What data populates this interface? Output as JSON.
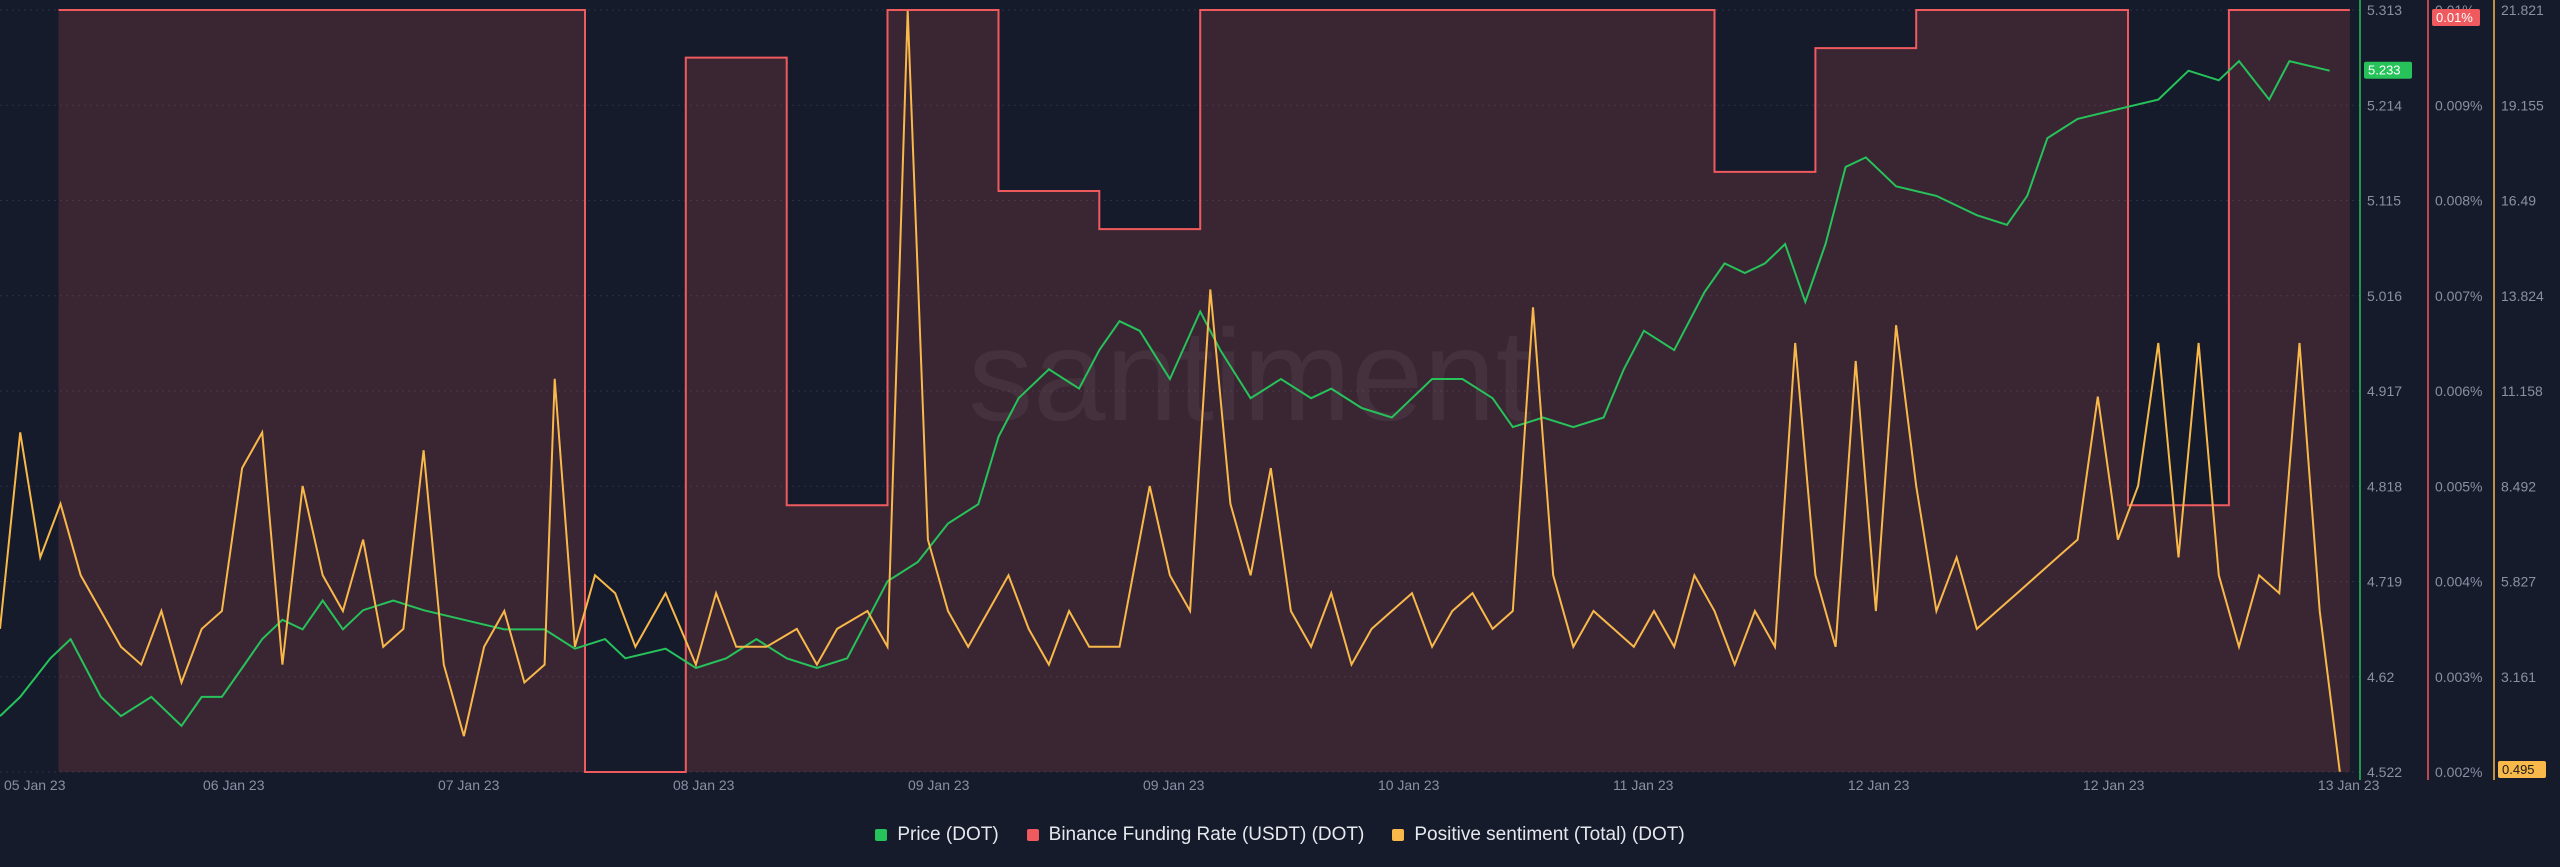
{
  "chart_data": {
    "type": "line",
    "watermark": "santiment",
    "x_ticks": [
      "05 Jan 23",
      "06 Jan 23",
      "07 Jan 23",
      "08 Jan 23",
      "09 Jan 23",
      "09 Jan 23",
      "10 Jan 23",
      "11 Jan 23",
      "12 Jan 23",
      "12 Jan 23",
      "13 Jan 23"
    ],
    "axes": {
      "price": {
        "ticks": [
          "5.313",
          "5.214",
          "5.115",
          "5.016",
          "4.917",
          "4.818",
          "4.719",
          "4.62",
          "4.522"
        ],
        "ylim": [
          4.522,
          5.313
        ],
        "current_label": "5.233",
        "color": "#26c25a"
      },
      "funding": {
        "ticks": [
          "0.01%",
          "0.009%",
          "0.008%",
          "0.007%",
          "0.006%",
          "0.005%",
          "0.004%",
          "0.003%",
          "0.002%"
        ],
        "ylim": [
          0.002,
          0.01
        ],
        "current_label": "0.01%",
        "color": "#ef5a5f"
      },
      "sentiment": {
        "ticks": [
          "21.821",
          "19.155",
          "16.49",
          "13.824",
          "11.158",
          "8.492",
          "5.827",
          "3.161",
          "0.495"
        ],
        "ylim": [
          0.495,
          21.821
        ],
        "current_label": "0.495",
        "color": "#f8b84a"
      }
    },
    "series": [
      {
        "name": "Price (DOT)",
        "color": "#26c25a",
        "axis": "price",
        "points": [
          [
            0,
            4.58
          ],
          [
            0.1,
            4.6
          ],
          [
            0.25,
            4.64
          ],
          [
            0.35,
            4.66
          ],
          [
            0.5,
            4.6
          ],
          [
            0.6,
            4.58
          ],
          [
            0.75,
            4.6
          ],
          [
            0.9,
            4.57
          ],
          [
            1.0,
            4.6
          ],
          [
            1.1,
            4.6
          ],
          [
            1.2,
            4.63
          ],
          [
            1.3,
            4.66
          ],
          [
            1.4,
            4.68
          ],
          [
            1.5,
            4.67
          ],
          [
            1.6,
            4.7
          ],
          [
            1.7,
            4.67
          ],
          [
            1.8,
            4.69
          ],
          [
            1.95,
            4.7
          ],
          [
            2.1,
            4.69
          ],
          [
            2.3,
            4.68
          ],
          [
            2.5,
            4.67
          ],
          [
            2.7,
            4.67
          ],
          [
            2.85,
            4.65
          ],
          [
            3.0,
            4.66
          ],
          [
            3.1,
            4.64
          ],
          [
            3.3,
            4.65
          ],
          [
            3.45,
            4.63
          ],
          [
            3.6,
            4.64
          ],
          [
            3.75,
            4.66
          ],
          [
            3.9,
            4.64
          ],
          [
            4.05,
            4.63
          ],
          [
            4.2,
            4.64
          ],
          [
            4.3,
            4.68
          ],
          [
            4.4,
            4.72
          ],
          [
            4.55,
            4.74
          ],
          [
            4.7,
            4.78
          ],
          [
            4.85,
            4.8
          ],
          [
            4.95,
            4.87
          ],
          [
            5.05,
            4.91
          ],
          [
            5.2,
            4.94
          ],
          [
            5.35,
            4.92
          ],
          [
            5.45,
            4.96
          ],
          [
            5.55,
            4.99
          ],
          [
            5.65,
            4.98
          ],
          [
            5.8,
            4.93
          ],
          [
            5.95,
            5.0
          ],
          [
            6.05,
            4.96
          ],
          [
            6.2,
            4.91
          ],
          [
            6.35,
            4.93
          ],
          [
            6.5,
            4.91
          ],
          [
            6.6,
            4.92
          ],
          [
            6.75,
            4.9
          ],
          [
            6.9,
            4.89
          ],
          [
            7.1,
            4.93
          ],
          [
            7.25,
            4.93
          ],
          [
            7.4,
            4.91
          ],
          [
            7.5,
            4.88
          ],
          [
            7.65,
            4.89
          ],
          [
            7.8,
            4.88
          ],
          [
            7.95,
            4.89
          ],
          [
            8.05,
            4.94
          ],
          [
            8.15,
            4.98
          ],
          [
            8.3,
            4.96
          ],
          [
            8.45,
            5.02
          ],
          [
            8.55,
            5.05
          ],
          [
            8.65,
            5.04
          ],
          [
            8.75,
            5.05
          ],
          [
            8.85,
            5.07
          ],
          [
            8.95,
            5.01
          ],
          [
            9.0,
            5.04
          ],
          [
            9.05,
            5.07
          ],
          [
            9.15,
            5.15
          ],
          [
            9.25,
            5.16
          ],
          [
            9.4,
            5.13
          ],
          [
            9.6,
            5.12
          ],
          [
            9.8,
            5.1
          ],
          [
            9.95,
            5.09
          ],
          [
            10.05,
            5.12
          ],
          [
            10.15,
            5.18
          ],
          [
            10.3,
            5.2
          ],
          [
            10.5,
            5.21
          ],
          [
            10.7,
            5.22
          ],
          [
            10.85,
            5.25
          ],
          [
            11.0,
            5.24
          ],
          [
            11.1,
            5.26
          ],
          [
            11.25,
            5.22
          ],
          [
            11.35,
            5.26
          ],
          [
            11.55,
            5.25
          ]
        ]
      },
      {
        "name": "Binance Funding Rate (USDT) (DOT)",
        "color": "#ef5a5f",
        "axis": "funding",
        "points": [
          [
            0.29,
            0.01
          ],
          [
            2.9,
            0.01
          ],
          [
            2.9,
            0.002
          ],
          [
            3.4,
            0.002
          ],
          [
            3.4,
            0.0095
          ],
          [
            3.9,
            0.0095
          ],
          [
            3.9,
            0.0048
          ],
          [
            4.4,
            0.0048
          ],
          [
            4.4,
            0.01
          ],
          [
            4.95,
            0.01
          ],
          [
            4.95,
            0.0081
          ],
          [
            5.45,
            0.0081
          ],
          [
            5.45,
            0.0077
          ],
          [
            5.95,
            0.0077
          ],
          [
            5.95,
            0.01
          ],
          [
            8.5,
            0.01
          ],
          [
            8.5,
            0.0083
          ],
          [
            9.0,
            0.0083
          ],
          [
            9.0,
            0.0096
          ],
          [
            9.5,
            0.0096
          ],
          [
            9.5,
            0.01
          ],
          [
            10.55,
            0.01
          ],
          [
            10.55,
            0.0048
          ],
          [
            11.05,
            0.0048
          ],
          [
            11.05,
            0.01
          ],
          [
            11.65,
            0.01
          ]
        ]
      },
      {
        "name": "Positive sentiment (Total) (DOT)",
        "color": "#f8b84a",
        "axis": "sentiment",
        "points": [
          [
            0,
            4.5
          ],
          [
            0.1,
            10
          ],
          [
            0.2,
            6.5
          ],
          [
            0.3,
            8
          ],
          [
            0.4,
            6
          ],
          [
            0.5,
            5
          ],
          [
            0.6,
            4
          ],
          [
            0.7,
            3.5
          ],
          [
            0.8,
            5
          ],
          [
            0.9,
            3
          ],
          [
            1.0,
            4.5
          ],
          [
            1.1,
            5
          ],
          [
            1.2,
            9
          ],
          [
            1.3,
            10
          ],
          [
            1.4,
            3.5
          ],
          [
            1.5,
            8.5
          ],
          [
            1.6,
            6
          ],
          [
            1.7,
            5
          ],
          [
            1.8,
            7
          ],
          [
            1.9,
            4
          ],
          [
            2.0,
            4.5
          ],
          [
            2.1,
            9.5
          ],
          [
            2.2,
            3.5
          ],
          [
            2.3,
            1.5
          ],
          [
            2.4,
            4
          ],
          [
            2.5,
            5
          ],
          [
            2.6,
            3
          ],
          [
            2.7,
            3.5
          ],
          [
            2.75,
            11.5
          ],
          [
            2.85,
            4
          ],
          [
            2.95,
            6
          ],
          [
            3.05,
            5.5
          ],
          [
            3.15,
            4
          ],
          [
            3.3,
            5.5
          ],
          [
            3.45,
            3.5
          ],
          [
            3.55,
            5.5
          ],
          [
            3.65,
            4
          ],
          [
            3.8,
            4
          ],
          [
            3.95,
            4.5
          ],
          [
            4.05,
            3.5
          ],
          [
            4.15,
            4.5
          ],
          [
            4.3,
            5
          ],
          [
            4.4,
            4
          ],
          [
            4.5,
            21.8
          ],
          [
            4.6,
            7
          ],
          [
            4.7,
            5
          ],
          [
            4.8,
            4
          ],
          [
            4.9,
            5
          ],
          [
            5.0,
            6
          ],
          [
            5.1,
            4.5
          ],
          [
            5.2,
            3.5
          ],
          [
            5.3,
            5
          ],
          [
            5.4,
            4
          ],
          [
            5.55,
            4
          ],
          [
            5.7,
            8.5
          ],
          [
            5.8,
            6
          ],
          [
            5.9,
            5
          ],
          [
            6.0,
            14
          ],
          [
            6.1,
            8
          ],
          [
            6.2,
            6
          ],
          [
            6.3,
            9
          ],
          [
            6.4,
            5
          ],
          [
            6.5,
            4
          ],
          [
            6.6,
            5.5
          ],
          [
            6.7,
            3.5
          ],
          [
            6.8,
            4.5
          ],
          [
            6.9,
            5
          ],
          [
            7.0,
            5.5
          ],
          [
            7.1,
            4
          ],
          [
            7.2,
            5
          ],
          [
            7.3,
            5.5
          ],
          [
            7.4,
            4.5
          ],
          [
            7.5,
            5
          ],
          [
            7.6,
            13.5
          ],
          [
            7.7,
            6
          ],
          [
            7.8,
            4
          ],
          [
            7.9,
            5
          ],
          [
            8.0,
            4.5
          ],
          [
            8.1,
            4
          ],
          [
            8.2,
            5
          ],
          [
            8.3,
            4
          ],
          [
            8.4,
            6
          ],
          [
            8.5,
            5
          ],
          [
            8.6,
            3.5
          ],
          [
            8.7,
            5
          ],
          [
            8.8,
            4
          ],
          [
            8.9,
            12.5
          ],
          [
            9.0,
            6
          ],
          [
            9.1,
            4
          ],
          [
            9.2,
            12
          ],
          [
            9.3,
            5
          ],
          [
            9.4,
            13
          ],
          [
            9.5,
            8.5
          ],
          [
            9.6,
            5
          ],
          [
            9.7,
            6.5
          ],
          [
            9.8,
            4.5
          ],
          [
            9.9,
            5
          ],
          [
            10.0,
            5.5
          ],
          [
            10.1,
            6
          ],
          [
            10.2,
            6.5
          ],
          [
            10.3,
            7
          ],
          [
            10.4,
            11
          ],
          [
            10.5,
            7
          ],
          [
            10.6,
            8.5
          ],
          [
            10.7,
            12.5
          ],
          [
            10.8,
            6.5
          ],
          [
            10.9,
            12.5
          ],
          [
            11.0,
            6
          ],
          [
            11.1,
            4
          ],
          [
            11.2,
            6
          ],
          [
            11.3,
            5.5
          ],
          [
            11.4,
            12.5
          ],
          [
            11.5,
            5
          ],
          [
            11.6,
            0.5
          ]
        ]
      }
    ],
    "legend_position": "bottom-center"
  },
  "legend": {
    "items": [
      {
        "label": "Price (DOT)",
        "color": "#26c25a"
      },
      {
        "label": "Binance Funding Rate (USDT) (DOT)",
        "color": "#ef5a5f"
      },
      {
        "label": "Positive sentiment (Total) (DOT)",
        "color": "#f8b84a"
      }
    ]
  }
}
